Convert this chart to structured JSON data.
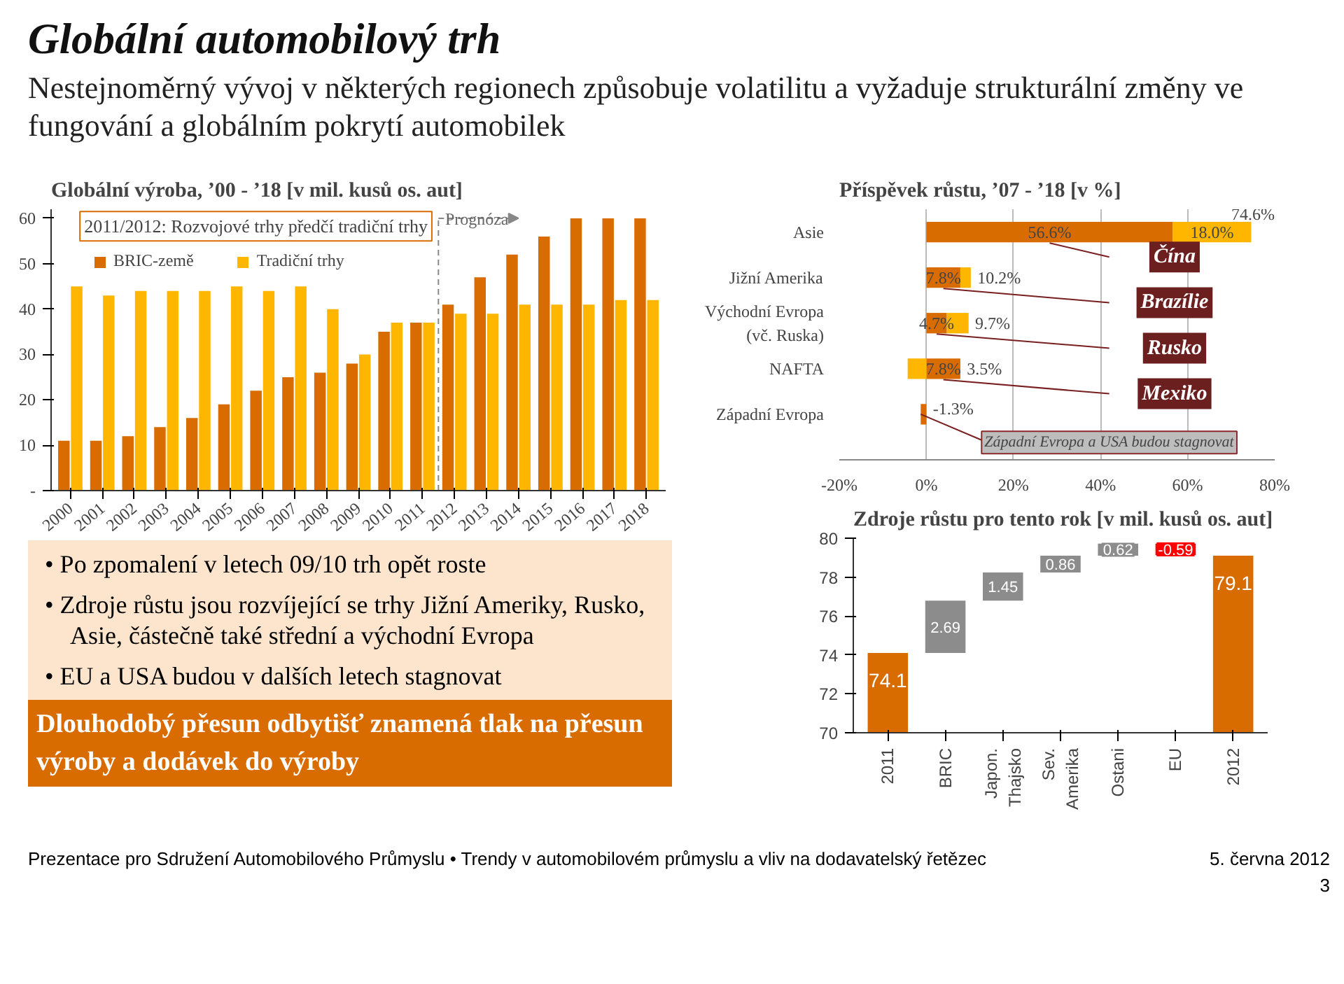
{
  "chart_data": [
    {
      "type": "other",
      "title": "Globální automobilový trh",
      "subtitle": "Nestejnoměrný vývoj v některých regionech způsobuje volatilitu a vyžaduje strukturální změny ve fungování a globálním pokrytí automobilek",
      "annotations": [
        "• Po zpomalení v letech 09/10 trh opět roste",
        "• Zdroje růstu jsou rozvíjející se trhy Jižní Ameriky, Rusko, Asie, částečně také střední a východní Evropa",
        "• EU a USA budou v dalších letech  stagnovat",
        "Dlouhodobý přesun odbytišť znamená tlak na přesun výroby a dodávek do výroby",
        "Prezentace pro Sdružení Automobilového Průmyslu • Trendy v automobilovém průmyslu a vliv na dodavatelský řetězec",
        "5. června 2012",
        "3"
      ]
    },
    {
      "type": "bar",
      "title": "Globální výroba, ’00 - ’18 [v mil. kusů os. aut]",
      "categories": [
        "2000",
        "2001",
        "2002",
        "2003",
        "2004",
        "2005",
        "2006",
        "2007",
        "2008",
        "2009",
        "2010",
        "2011",
        "2012",
        "2013",
        "2014",
        "2015",
        "2016",
        "2017",
        "2018"
      ],
      "series": [
        {
          "name": "BRIC-země",
          "color": "#d96c00",
          "values": [
            11,
            11,
            12,
            14,
            16,
            19,
            22,
            25,
            26,
            28,
            35,
            37,
            41,
            47,
            52,
            56,
            60,
            60,
            60
          ]
        },
        {
          "name": "Tradiční trhy",
          "color": "#ffb600",
          "values": [
            45,
            43,
            44,
            44,
            44,
            45,
            44,
            45,
            40,
            30,
            37,
            37,
            39,
            39,
            41,
            41,
            41,
            42,
            42
          ]
        }
      ],
      "ylim": [
        0,
        62
      ],
      "yticks": [
        {
          "value": 0,
          "label": "-"
        },
        10,
        20,
        30,
        40,
        50,
        60
      ],
      "grid": false,
      "legend": "top left",
      "annotations": [
        "2011/2012: Rozvojové trhy předčí tradiční trhy",
        "Prognóza"
      ]
    },
    {
      "type": "bar",
      "orientation": "horizontal",
      "stacked": true,
      "title": "Příspěvek růstu, ’07 - ’18 [v %]",
      "categories": [
        "Asie",
        "Jižní Amerika",
        "Východní Evropa\n(vč. Ruska)",
        "NAFTA",
        "Západní Evropa"
      ],
      "series": [
        {
          "color": "#d96c00",
          "values": [
            56.6,
            7.8,
            4.7,
            7.8,
            -1.3
          ],
          "value_labels": [
            "56.6%",
            "7.8%",
            "4.7%",
            "7.8%",
            null
          ]
        },
        {
          "color": "#ffb600",
          "values": [
            18.0,
            2.4,
            5.0,
            -4.3,
            0
          ],
          "value_labels": [
            "18.0%",
            null,
            null,
            null,
            null
          ]
        }
      ],
      "totals": [
        "74.6%",
        "10.2%",
        "9.7%",
        "3.5%",
        "-1.3%"
      ],
      "xlim": [
        -20,
        80
      ],
      "xticks": [
        {
          "value": -20,
          "label": "-20%"
        },
        {
          "value": 0,
          "label": "0%"
        },
        {
          "value": 20,
          "label": "20%"
        },
        {
          "value": 40,
          "label": "40%"
        },
        {
          "value": 60,
          "label": "60%"
        },
        {
          "value": 80,
          "label": "80%"
        }
      ],
      "grid": "x",
      "annotations": [
        "Čína",
        "Brazílie",
        "Rusko",
        "Mexiko",
        {
          "text": "Západní Evropa a USA budou stagnovat",
          "x": -1.3,
          "y": "Západní Evropa"
        }
      ]
    },
    {
      "type": "bar",
      "title": "Zdroje růstu pro tento rok [v mil. kusů os. aut]",
      "categories": [
        "2011",
        "BRIC",
        "Japon.\nThajsko",
        "Sev.\nAmerika",
        "Ostani",
        "EU",
        "2012"
      ],
      "values": [
        74.1,
        2.69,
        1.45,
        0.86,
        0.62,
        -0.59,
        79.1
      ],
      "base": [
        null,
        74.1,
        76.79,
        78.24,
        79.1,
        79.72,
        null
      ],
      "colors": [
        "#d96c00",
        "#8c8c8c",
        "#8c8c8c",
        "#8c8c8c",
        "#8c8c8c",
        "#ff0000",
        "#d96c00"
      ],
      "data_labels": true,
      "ylim": [
        70,
        80
      ],
      "yticks": [
        70,
        72,
        74,
        76,
        78,
        80
      ],
      "grid": false
    }
  ]
}
